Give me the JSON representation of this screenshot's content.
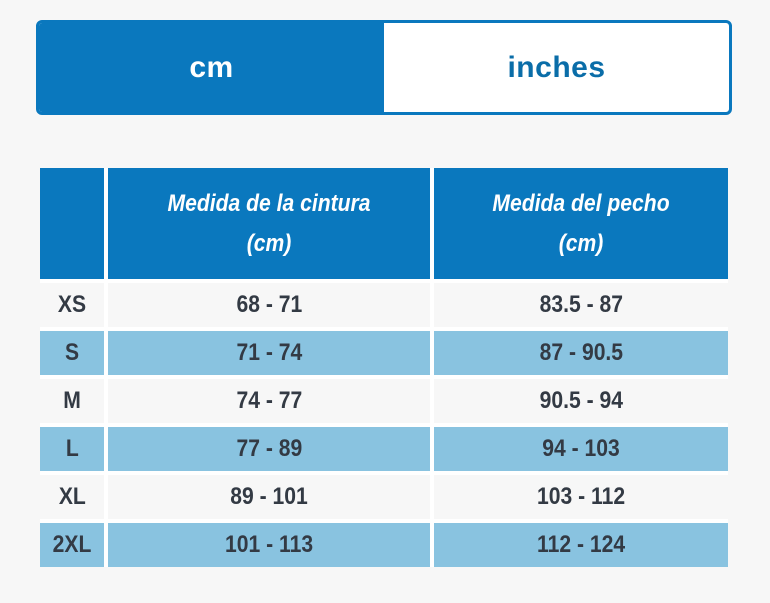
{
  "toggle": {
    "options": [
      "cm",
      "inches"
    ],
    "active": 0
  },
  "table": {
    "columns": [
      "Medida de la cintura (cm)",
      "Medida del pecho (cm)"
    ],
    "rows": [
      [
        "XS",
        "68 - 71",
        "83.5 - 87"
      ],
      [
        "S",
        "71 - 74",
        "87 - 90.5"
      ],
      [
        "M",
        "74 - 77",
        "90.5 - 94"
      ],
      [
        "L",
        "77 - 89",
        "94 - 103"
      ],
      [
        "XL",
        "89 - 101",
        "103 - 112"
      ],
      [
        "2XL",
        "101 - 113",
        "112 - 124"
      ]
    ]
  }
}
